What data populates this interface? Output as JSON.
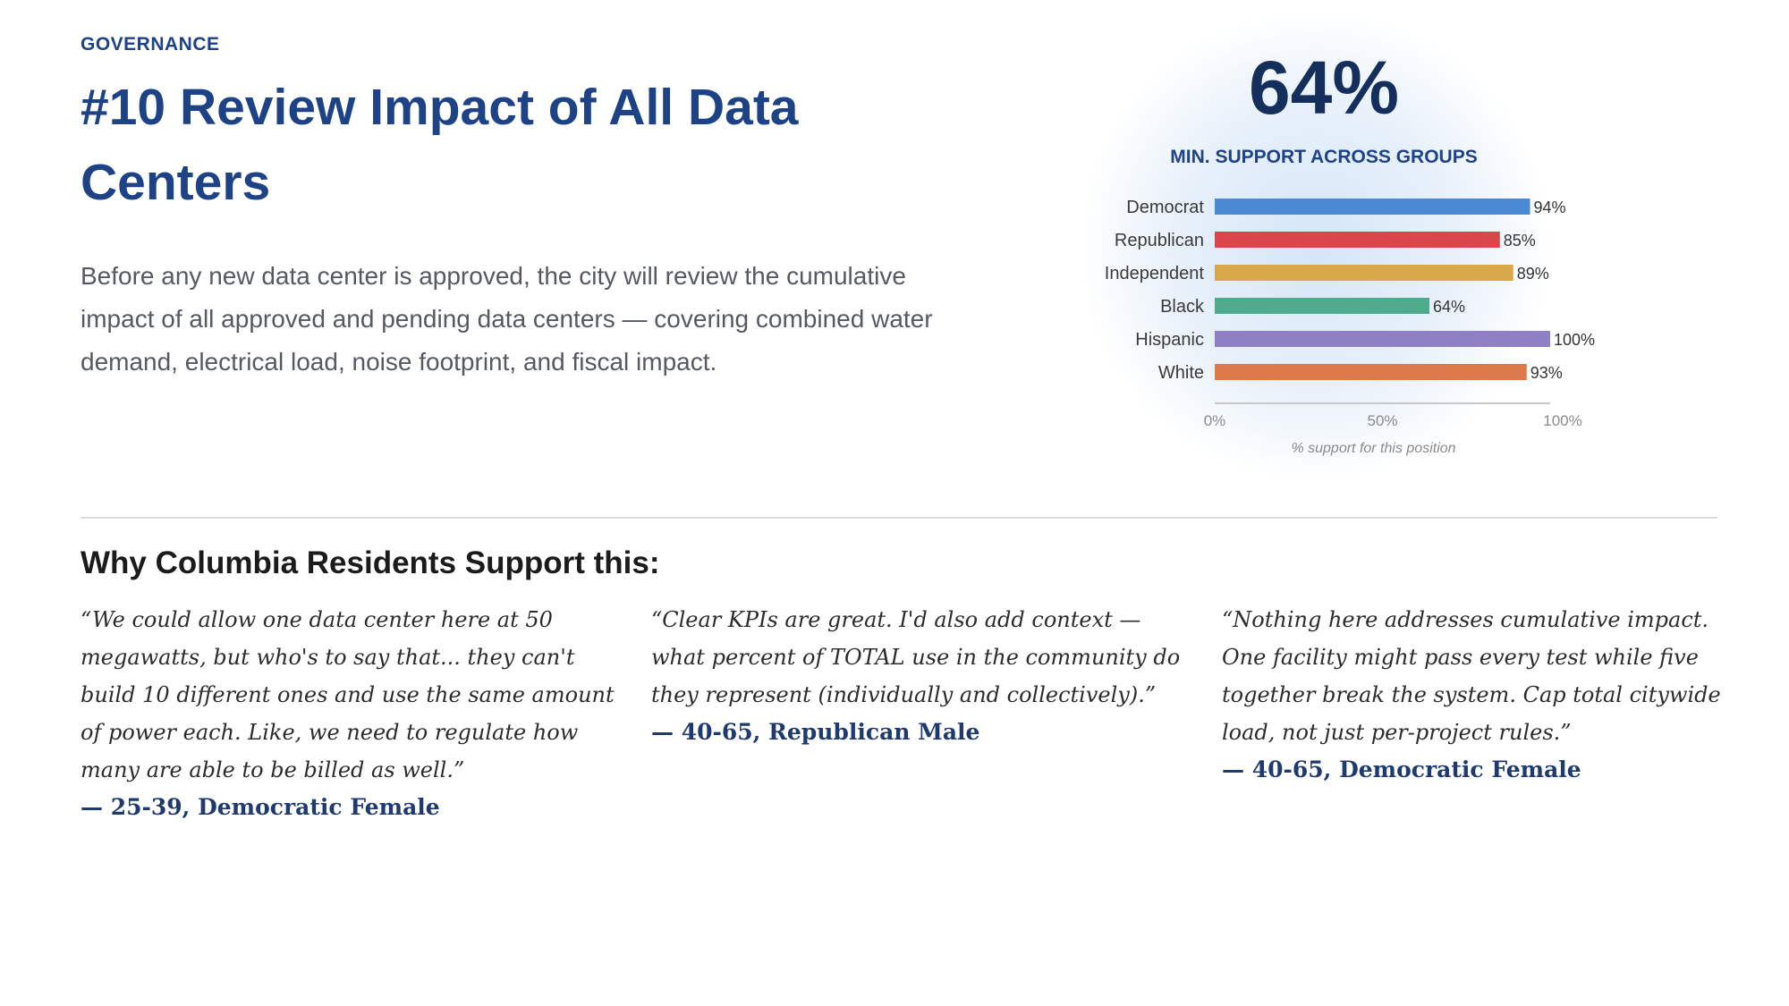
{
  "category": "GOVERNANCE",
  "headline": "#10 Review Impact of All Data Centers",
  "lead": "Before any new data center is approved, the city will review the cumulative impact of all approved and pending data centers — covering combined water demand, electrical load, noise footprint, and fiscal impact.",
  "stat": {
    "value": "64%",
    "caption": "MIN. SUPPORT ACROSS GROUPS"
  },
  "chart_data": {
    "type": "bar",
    "orientation": "horizontal",
    "categories": [
      "Democrat",
      "Republican",
      "Independent",
      "Black",
      "Hispanic",
      "White"
    ],
    "values": [
      94,
      85,
      89,
      64,
      100,
      93
    ],
    "value_labels": [
      "94%",
      "85%",
      "89%",
      "64%",
      "100%",
      "93%"
    ],
    "colors": [
      "#4a8ad4",
      "#d9474b",
      "#d9a84a",
      "#4eac8c",
      "#8f80c6",
      "#dd7a4c"
    ],
    "xlim": [
      0,
      100
    ],
    "ticks": [
      "0%",
      "50%",
      "100%"
    ],
    "xlabel": "% support for this position",
    "grid": false
  },
  "section_heading": "Why Columbia Residents Support this:",
  "quotes": [
    {
      "text": "“We could allow one data center here at 50 megawatts, but who's to say that... they can't build 10 different ones and use the same amount of power each. Like, we need to regulate how many are able to be billed as well.”",
      "attribution": "— 25-39, Democratic Female"
    },
    {
      "text": "“Clear KPIs are great. I'd also add context — what percent of TOTAL use in the community do they represent (individually and collectively).”",
      "attribution": "— 40-65, Republican Male"
    },
    {
      "text": "“Nothing here addresses cumulative impact. One facility might pass every test while five together break the system. Cap total citywide load, not just per-project rules.”",
      "attribution": "— 40-65, Democratic Female"
    }
  ]
}
